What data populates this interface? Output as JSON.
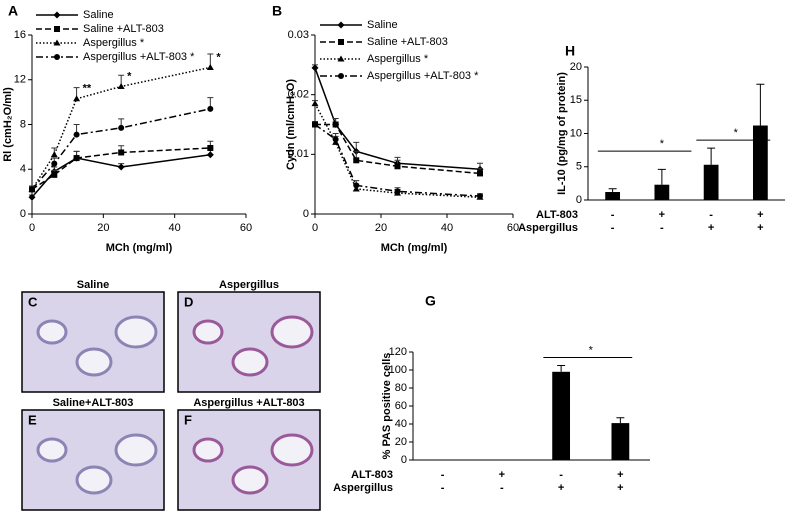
{
  "chart_data": [
    {
      "type": "line",
      "panel": "A",
      "xlabel": "MCh (mg/ml)",
      "ylabel": "Rl (cmH₂O/ml)",
      "x": [
        0,
        6.25,
        12.5,
        25,
        50
      ],
      "xlim": [
        0,
        60
      ],
      "xticks": [
        0,
        20,
        40,
        60
      ],
      "ylim": [
        0,
        16
      ],
      "yticks": [
        0,
        4,
        8,
        12,
        16
      ],
      "series": [
        {
          "name": "Saline",
          "color": "#000000",
          "dash": "solid",
          "marker": "diamond",
          "values": [
            1.5,
            3.8,
            5.0,
            4.2,
            5.3
          ],
          "errors": [
            0.2,
            0.4,
            0.6,
            0.3,
            0.6
          ]
        },
        {
          "name": "Saline +ALT-803",
          "color": "#000000",
          "dash": "dashed",
          "marker": "square",
          "values": [
            2.2,
            3.5,
            5.0,
            5.5,
            5.9
          ],
          "errors": [
            0.2,
            0.4,
            0.6,
            0.6,
            0.6
          ]
        },
        {
          "name": "Aspergillus *",
          "color": "#000000",
          "dash": "dotted",
          "marker": "triangle",
          "values": [
            2.2,
            5.3,
            10.3,
            11.4,
            13.1
          ],
          "errors": [
            0.3,
            0.6,
            1.0,
            1.0,
            1.2
          ],
          "annotations": [
            {
              "text": "**",
              "index": 2
            },
            {
              "text": "*",
              "index": 3
            },
            {
              "text": "*",
              "index": 4
            }
          ]
        },
        {
          "name": "Aspergillus +ALT-803 *",
          "color": "#000000",
          "dash": "dashdot",
          "marker": "circle",
          "values": [
            2.2,
            4.5,
            7.1,
            7.7,
            9.4
          ],
          "errors": [
            0.2,
            0.5,
            0.9,
            0.8,
            1.0
          ]
        }
      ]
    },
    {
      "type": "line",
      "panel": "B",
      "xlabel": "MCh (mg/ml)",
      "ylabel": "Cydn (ml/cmH₂O)",
      "x": [
        0,
        6.25,
        12.5,
        25,
        50
      ],
      "xlim": [
        0,
        60
      ],
      "xticks": [
        0,
        20,
        40,
        60
      ],
      "ylim": [
        0,
        0.03
      ],
      "yticks": [
        0,
        0.01,
        0.02,
        0.03
      ],
      "series": [
        {
          "name": "Saline",
          "color": "#000000",
          "dash": "solid",
          "marker": "diamond",
          "values": [
            0.0245,
            0.015,
            0.0105,
            0.0085,
            0.0075
          ],
          "errors": [
            0.0005,
            0.001,
            0.0015,
            0.001,
            0.001
          ]
        },
        {
          "name": "Saline +ALT-803",
          "color": "#000000",
          "dash": "dashed",
          "marker": "square",
          "values": [
            0.015,
            0.015,
            0.009,
            0.008,
            0.0068
          ],
          "errors": [
            0.0005,
            0.001,
            0.0015,
            0.001,
            0.0008
          ]
        },
        {
          "name": "Aspergillus *",
          "color": "#000000",
          "dash": "dotted",
          "marker": "triangle",
          "values": [
            0.0185,
            0.012,
            0.0042,
            0.0035,
            0.0028
          ],
          "errors": [
            0.0005,
            0.001,
            0.0008,
            0.0006,
            0.0004
          ]
        },
        {
          "name": "Aspergillus +ALT-803 *",
          "color": "#000000",
          "dash": "dashdot",
          "marker": "circle",
          "values": [
            0.015,
            0.0125,
            0.0048,
            0.0038,
            0.003
          ],
          "errors": [
            0.0005,
            0.001,
            0.0008,
            0.0006,
            0.0004
          ]
        }
      ]
    },
    {
      "type": "bar",
      "panel": "H",
      "ylabel": "IL-10 (pg/mg of protein)",
      "color": "#000000",
      "categories": [
        null,
        null,
        null,
        null
      ],
      "values": [
        1.2,
        2.3,
        5.3,
        11.2
      ],
      "errors": [
        0.5,
        2.3,
        2.5,
        6.2
      ],
      "ylim": [
        0,
        20
      ],
      "yticks": [
        0,
        5,
        10,
        15,
        20
      ],
      "rows": [
        {
          "label": "ALT-803",
          "signs": [
            "-",
            "+",
            "-",
            "+"
          ]
        },
        {
          "label": "Aspergillus",
          "signs": [
            "-",
            "-",
            "+",
            "+"
          ]
        }
      ],
      "significance": [
        {
          "label": "*",
          "span": [
            0,
            2
          ]
        },
        {
          "label": "*",
          "span": [
            2,
            3
          ]
        }
      ]
    },
    {
      "type": "bar",
      "panel": "G",
      "ylabel": "% PAS positive cells",
      "color": "#000000",
      "categories": [
        null,
        null,
        null,
        null
      ],
      "values": [
        0,
        0,
        98,
        41
      ],
      "errors": [
        0,
        0,
        7,
        6
      ],
      "ylim": [
        0,
        120
      ],
      "yticks": [
        0,
        20,
        40,
        60,
        80,
        100,
        120
      ],
      "rows": [
        {
          "label": "ALT-803",
          "signs": [
            "-",
            "+",
            "-",
            "+"
          ]
        },
        {
          "label": "Aspergillus",
          "signs": [
            "-",
            "-",
            "+",
            "+"
          ]
        }
      ],
      "significance": [
        {
          "label": "*",
          "span": [
            2,
            3
          ]
        }
      ]
    }
  ],
  "images": [
    {
      "panel": "C",
      "label": "Saline"
    },
    {
      "panel": "D",
      "label": "Aspergillus"
    },
    {
      "panel": "E",
      "label": "Saline+ALT-803"
    },
    {
      "panel": "F",
      "label": "Aspergillus +ALT-803"
    }
  ]
}
